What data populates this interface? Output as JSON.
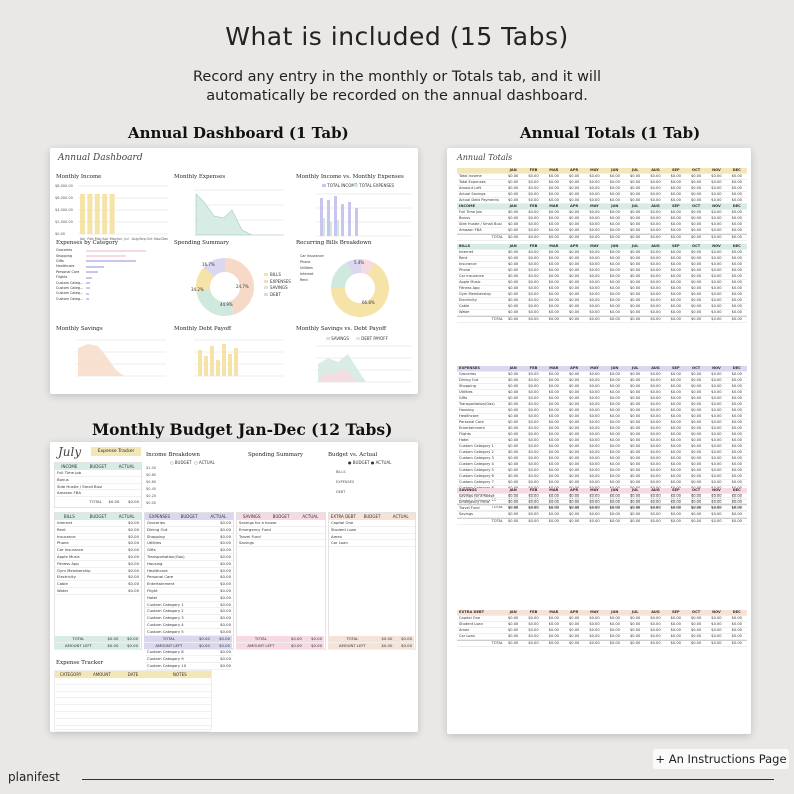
{
  "header": {
    "title": "What is included (15 Tabs)",
    "subtitle_line1": "Record any entry in the monthly or Totals tab, and it will",
    "subtitle_line2": "automatically be recorded on the annual dashboard."
  },
  "sections": {
    "annual_dashboard": "Annual Dashboard (1 Tab)",
    "annual_totals": "Annual Totals (1 Tab)",
    "monthly_budget": "Monthly Budget Jan-Dec (12 Tabs)"
  },
  "dashboard": {
    "script_title": "Annual Dashboard",
    "panels": {
      "monthly_income": "Monthly Income",
      "monthly_expenses": "Monthly Expenses",
      "income_vs_expenses": "Monthly Income vs. Monthly Expenses",
      "expenses_by_category": "Expenses by Category",
      "spending_summary": "Spending Summary",
      "recurring_bills": "Recurring Bills Breakdown",
      "monthly_savings": "Monthly Savings",
      "debt_payoff": "Monthly Debt Payoff",
      "savings_vs_debt": "Monthly Savings vs. Debt Payoff"
    },
    "months": [
      "Jan",
      "Feb",
      "Mar",
      "Apr",
      "May",
      "Jun",
      "Jul",
      "Aug",
      "Sep",
      "Oct",
      "Nov",
      "Dec"
    ],
    "legend_income": "TOTAL INCOME",
    "legend_expenses": "TOTAL EXPENSES",
    "legend_savings": "SAVINGS",
    "legend_debt": "DEBT PAYOFF",
    "spending_legend": [
      "BILLS",
      "EXPENSES",
      "SAVINGS",
      "DEBT"
    ],
    "spending_pct": [
      "16.7%",
      "34.2%",
      "44.9%",
      "24.7%"
    ],
    "recurring_labels": [
      "Car Insurance",
      "Phone",
      "Utilities",
      "Internet",
      "Rent"
    ],
    "recurring_pct": [
      "5.4%",
      "66.8%"
    ],
    "income_ticks": [
      "$8,000.00",
      "$6,000.00",
      "$4,000.00",
      "$2,000.00",
      "$0.00"
    ],
    "expense_ticks": [
      "$3,000.00",
      "$2,000.00",
      "$1,000.00",
      "$0.00"
    ],
    "savings_ticks": [
      "$1,000.00",
      "$750.00",
      "$500.00",
      "$250.00",
      "$0.00"
    ],
    "debt_ticks": [
      "$1,000.00",
      "$750.00",
      "$500.00",
      "$250.00",
      "$0.00"
    ],
    "category_labels": [
      "Groceries",
      "Shopping",
      "Gifts",
      "Healthcare",
      "Personal Care",
      "Flights",
      "Custom Categ...",
      "Custom Categ...",
      "Custom Categ...",
      "Custom Categ..."
    ]
  },
  "totals": {
    "script_title": "Annual Totals",
    "months": [
      "JAN",
      "FEB",
      "MAR",
      "APR",
      "MAY",
      "JUN",
      "JUL",
      "AUG",
      "SEP",
      "OCT",
      "NOV",
      "DEC"
    ],
    "summary_rows": [
      "Total Income",
      "Total Expenses",
      "Amount Left",
      "Actual Savings",
      "Actual Debt Payments"
    ],
    "income_header": "INCOME",
    "income_rows": [
      "Full Time Job",
      "Bonus",
      "Side Hustle / Small Busi",
      "Amazon FBA"
    ],
    "bills_header": "BILLS",
    "bills_rows": [
      "Internet",
      "Rent",
      "Insurance",
      "Phone",
      "Car Insurance",
      "Apple Music",
      "Fitness App",
      "Gym Membership",
      "Electricity",
      "Cable",
      "Water"
    ],
    "expenses_header": "EXPENSES",
    "expenses_rows": [
      "Groceries",
      "Dining Out",
      "Shopping",
      "Utilities",
      "Gifts",
      "Transportation(Gas)",
      "Housing",
      "Healthcare",
      "Personal Care",
      "Entertainment",
      "Flights",
      "Hotel",
      "Custom Category 1",
      "Custom Category 2",
      "Custom Category 3",
      "Custom Category 4",
      "Custom Category 5",
      "Custom Category 6",
      "Custom Category 7",
      "Custom Category 8",
      "Custom Category 9",
      "Custom Category 10"
    ],
    "savings_header": "SAVINGS",
    "savings_rows": [
      "Savings for a house",
      "Emergency Fund",
      "Travel Fund",
      "Savings"
    ],
    "debt_header": "EXTRA DEBT",
    "debt_rows": [
      "Capital One",
      "Student Loan",
      "Amex",
      "Car Loan"
    ],
    "total_label": "TOTAL",
    "zero": "$0.00"
  },
  "monthly": {
    "script_title": "July",
    "tracker_badge": "Expense Tracker",
    "income_breakdown": "Income Breakdown",
    "spending_summary": "Spending Summary",
    "budget_vs_actual": "Budget vs. Actual",
    "legend_budget": "BUDGET",
    "legend_actual": "ACTUAL",
    "bva_rows": [
      "BILLS",
      "EXPENSES",
      "DEBT"
    ],
    "income_ticks": [
      "$1.00",
      "$0.80",
      "$0.60",
      "$0.40",
      "$0.20",
      "$0.00"
    ],
    "income_block": {
      "head": [
        "INCOME",
        "BUDGET",
        "ACTUAL"
      ],
      "rows": [
        "Full Time Job",
        "Bonus",
        "Side Hustle / Small Business",
        "Amazon FBA"
      ],
      "total": "TOTAL",
      "values": [
        "$0.00",
        "$0.00"
      ]
    },
    "bills_block": {
      "head": [
        "BILLS",
        "BUDGET",
        "ACTUAL"
      ],
      "rows": [
        "Internet",
        "Rent",
        "Insurance",
        "Phone",
        "Car Insurance",
        "Apple Music",
        "Fitness App",
        "Gym Membership",
        "Electricity",
        "Cable",
        "Water"
      ]
    },
    "expenses_block": {
      "head": [
        "EXPENSES",
        "BUDGET",
        "ACTUAL"
      ],
      "rows": [
        "Groceries",
        "Dining Out",
        "Shopping",
        "Utilities",
        "Gifts",
        "Transportation(Gas)",
        "Housing",
        "Healthcare",
        "Personal Care",
        "Entertainment",
        "Flight",
        "Hotel",
        "Custom Category 1",
        "Custom Category 2",
        "Custom Category 3",
        "Custom Category 4",
        "Custom Category 5",
        "Custom Category 6",
        "Custom Category 7",
        "Custom Category 8",
        "Custom Category 9",
        "Custom Category 10"
      ]
    },
    "savings_block": {
      "head": [
        "SAVINGS",
        "BUDGET",
        "ACTUAL"
      ],
      "rows": [
        "Savings for a house",
        "Emergency Fund",
        "Travel Fund",
        "Savings"
      ]
    },
    "debt_block": {
      "head": [
        "EXTRA DEBT",
        "BUDGET",
        "ACTUAL"
      ],
      "rows": [
        "Capital One",
        "Student Loan",
        "Amex",
        "Car Loan"
      ]
    },
    "total_label": "TOTAL",
    "amount_left_label": "AMOUNT LEFT",
    "zero": "$0.00",
    "expense_tracker": {
      "title": "Expense Tracker",
      "head": [
        "CATEGORY",
        "AMOUNT",
        "DATE",
        "NOTES"
      ]
    }
  },
  "footer": {
    "brand": "planifest",
    "instructions": "+ An Instructions Page"
  },
  "colors": {
    "background": "#e9e8e6",
    "income": "#f3e7b8",
    "expenses": "#dcd7f0",
    "savings": "#f7d9e2",
    "debt": "#f6e2d6",
    "bills": "#d6ece4",
    "bar_yellow": "#f5e3a8",
    "mint": "#cfe9df",
    "lavender": "#c9c6ee",
    "peach": "#f6d9c6"
  }
}
